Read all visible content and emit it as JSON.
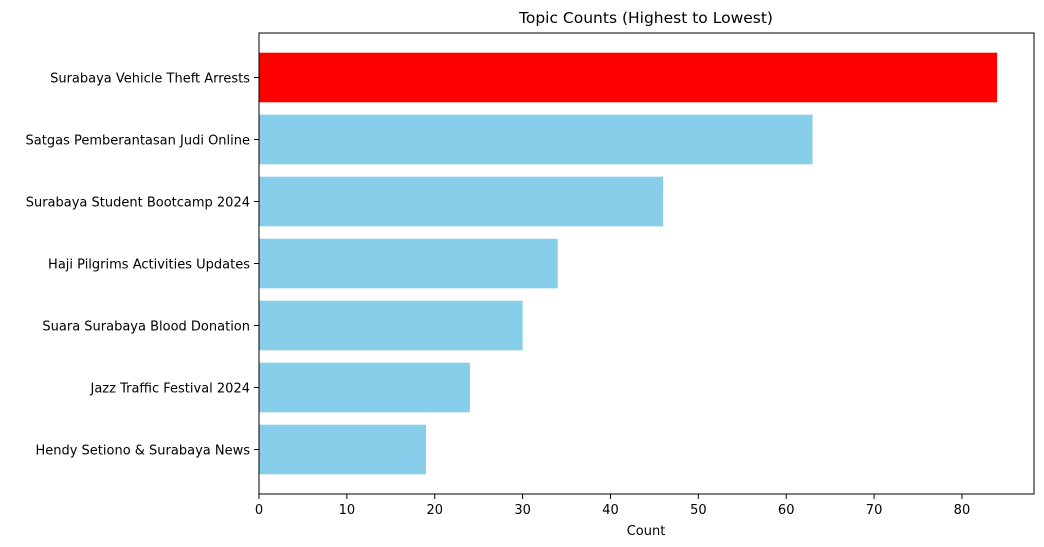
{
  "chart_data": {
    "type": "bar",
    "orientation": "horizontal",
    "title": "Topic Counts (Highest to Lowest)",
    "xlabel": "Count",
    "ylabel": "",
    "xlim": [
      0,
      88.2
    ],
    "xticks": [
      0,
      10,
      20,
      30,
      40,
      50,
      60,
      70,
      80
    ],
    "grid": false,
    "categories": [
      "Surabaya Vehicle Theft Arrests",
      "Satgas Pemberantasan Judi Online",
      "Surabaya Student Bootcamp 2024",
      "Haji Pilgrims Activities Updates",
      "Suara Surabaya Blood Donation",
      "Jazz Traffic Festival 2024",
      "Hendy Setiono & Surabaya News"
    ],
    "values": [
      84,
      63,
      46,
      34,
      30,
      24,
      19
    ],
    "colors": [
      "#ff0000",
      "#87ceeb",
      "#87ceeb",
      "#87ceeb",
      "#87ceeb",
      "#87ceeb",
      "#87ceeb"
    ]
  }
}
